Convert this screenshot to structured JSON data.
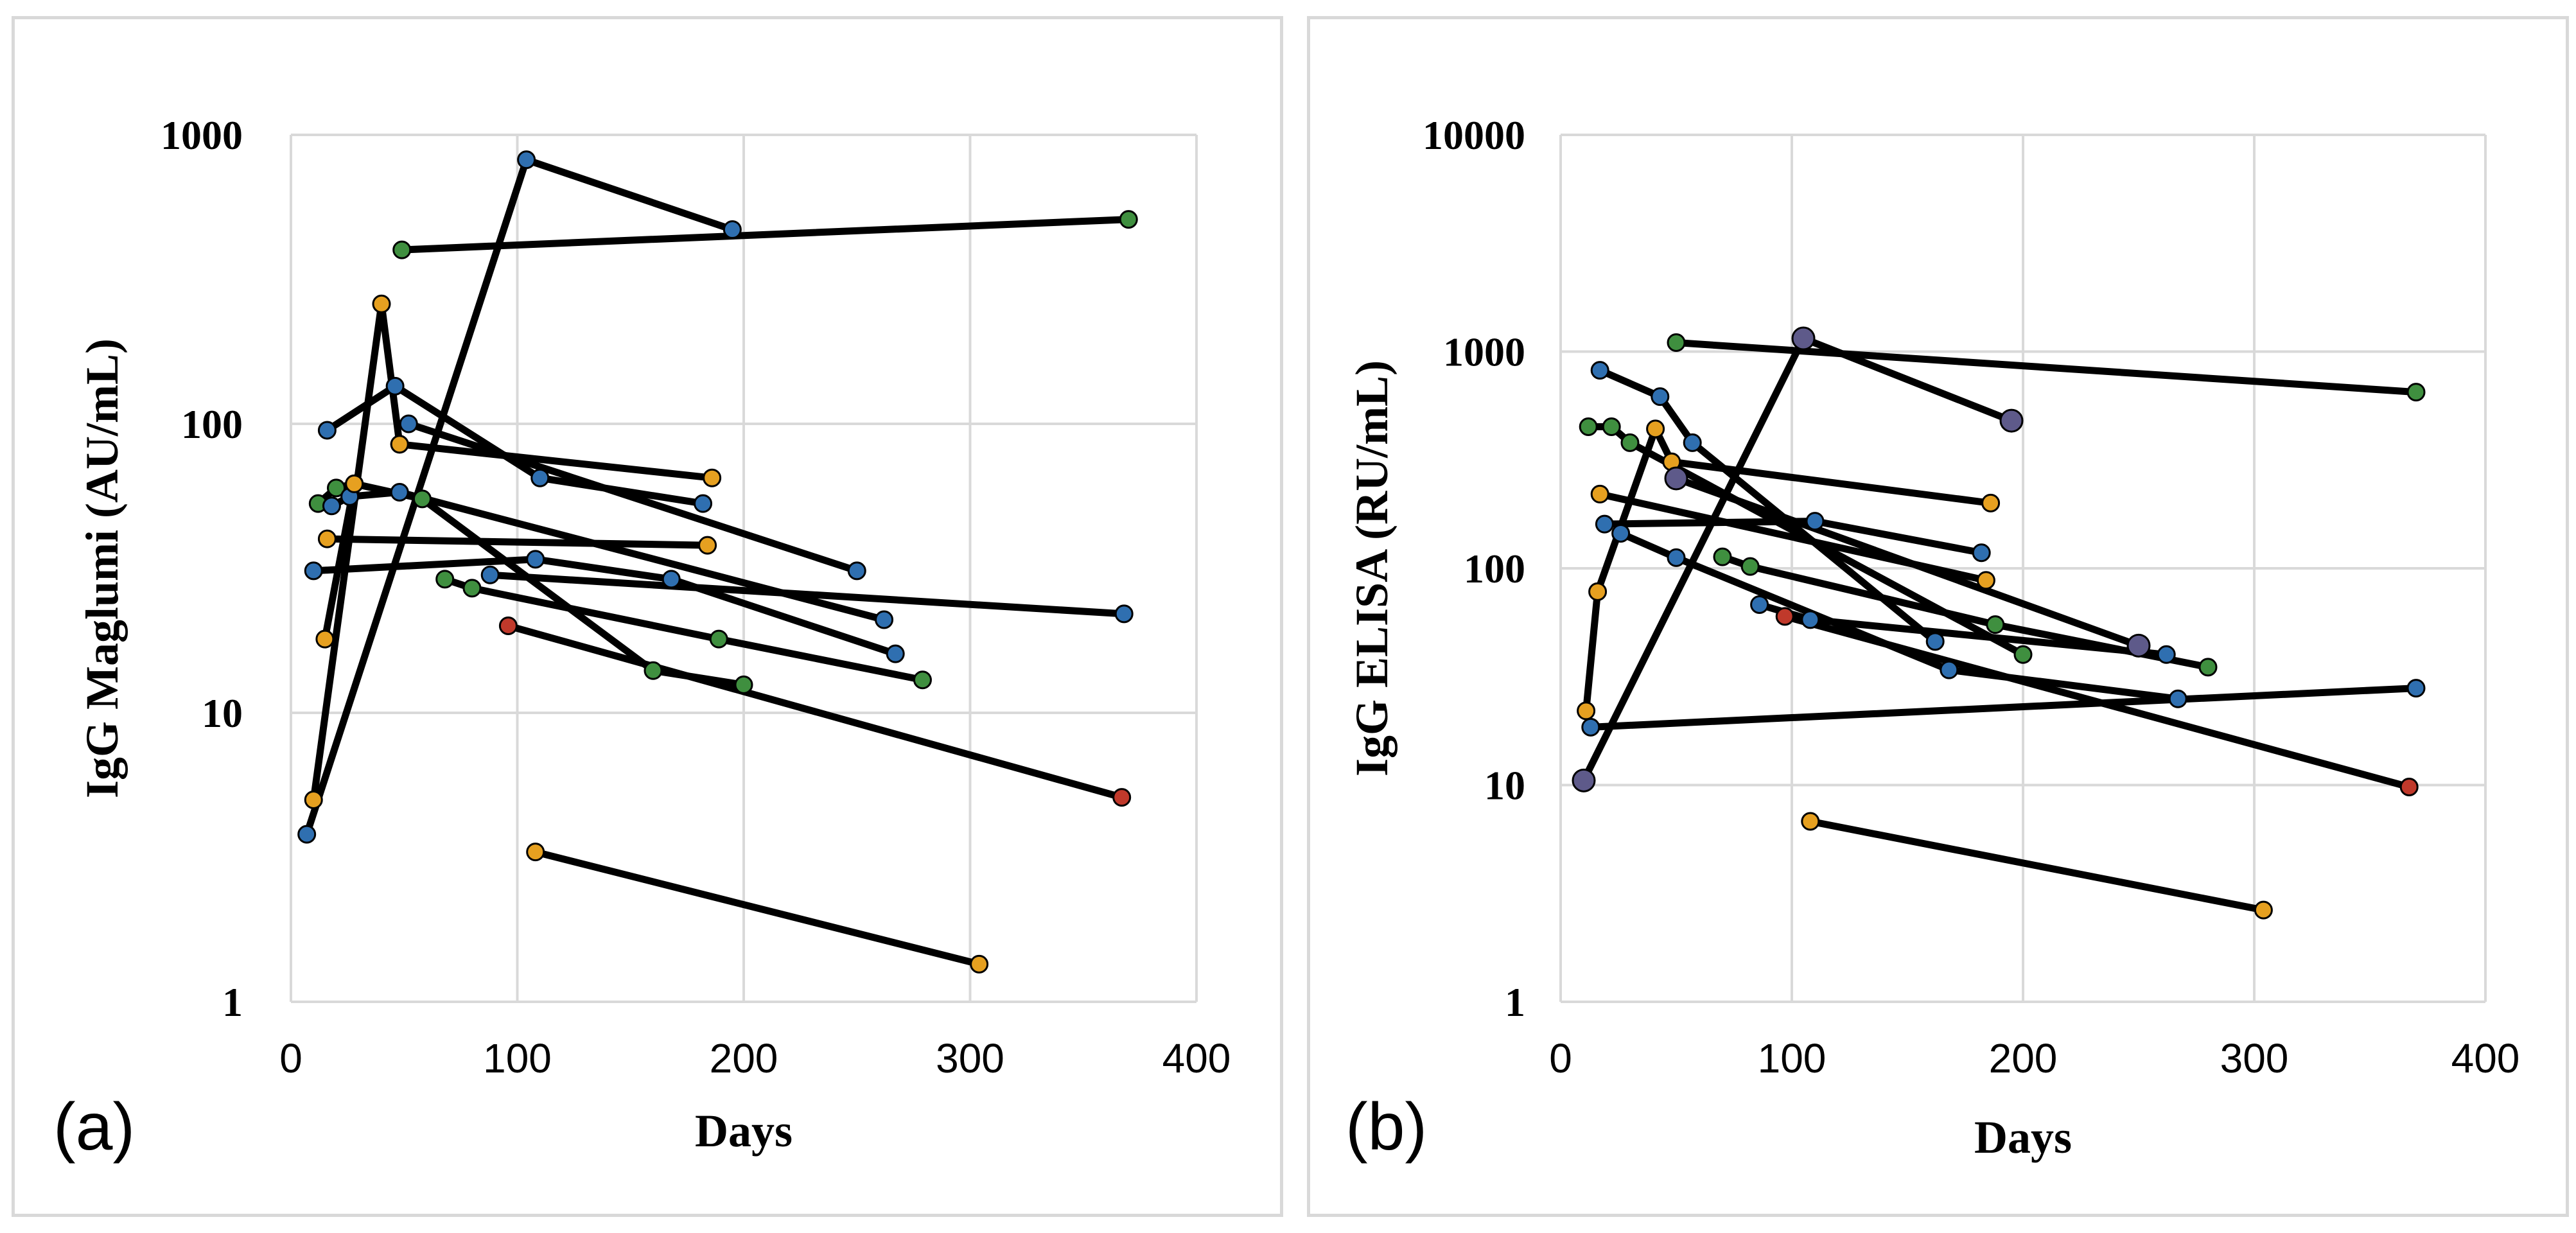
{
  "colors": {
    "blue": "#2f6fb0",
    "green": "#3f8f3f",
    "orange": "#e6a020",
    "red": "#c0392b",
    "purple": "#5e5a8a",
    "line_purple": "#3d3a63"
  },
  "chart_data": [
    {
      "type": "line",
      "panel_label": "(a)",
      "xlabel": "Days",
      "ylabel": "IgG Maglumi (AU/mL)",
      "xlim": [
        0,
        400
      ],
      "ylim": [
        1,
        1000
      ],
      "yscale": "log",
      "grid": true,
      "xticks": [
        "0",
        "100",
        "200",
        "300",
        "400"
      ],
      "yticks": [
        "1",
        "10",
        "100",
        "1000"
      ],
      "ytick_values": [
        1,
        10,
        100,
        1000
      ],
      "xtick_values": [
        0,
        100,
        200,
        300,
        400
      ],
      "series": [
        {
          "color": "blue",
          "x": [
            7,
            104,
            195
          ],
          "y": [
            3.8,
            820,
            470
          ]
        },
        {
          "color": "orange",
          "x": [
            10,
            40,
            48
          ],
          "y": [
            5,
            260,
            85
          ]
        },
        {
          "color": "green",
          "x": [
            49,
            370
          ],
          "y": [
            400,
            510
          ]
        },
        {
          "color": "blue",
          "x": [
            16,
            46,
            110,
            182
          ],
          "y": [
            95,
            135,
            65,
            53
          ]
        },
        {
          "color": "orange",
          "x": [
            48,
            186
          ],
          "y": [
            85,
            65
          ]
        },
        {
          "color": "blue",
          "x": [
            52,
            250
          ],
          "y": [
            100,
            31
          ]
        },
        {
          "color": "green",
          "x": [
            12,
            20,
            28,
            58,
            160,
            200
          ],
          "y": [
            53,
            60,
            62,
            55,
            14,
            12.5
          ]
        },
        {
          "color": "blue",
          "x": [
            18,
            26,
            48,
            262
          ],
          "y": [
            52,
            56,
            58,
            21
          ]
        },
        {
          "color": "orange",
          "x": [
            16,
            184
          ],
          "y": [
            40,
            38
          ]
        },
        {
          "color": "blue",
          "x": [
            10,
            108,
            168,
            267
          ],
          "y": [
            31,
            34,
            29,
            16
          ]
        },
        {
          "color": "green",
          "x": [
            68,
            80,
            189,
            279
          ],
          "y": [
            29,
            27,
            18,
            13
          ]
        },
        {
          "color": "blue",
          "x": [
            88,
            368
          ],
          "y": [
            30,
            22
          ]
        },
        {
          "color": "red",
          "x": [
            96,
            367
          ],
          "y": [
            20,
            5.1
          ]
        },
        {
          "color": "orange",
          "x": [
            15,
            28
          ],
          "y": [
            18,
            62
          ]
        },
        {
          "color": "orange",
          "x": [
            108,
            304
          ],
          "y": [
            3.3,
            1.35
          ]
        }
      ]
    },
    {
      "type": "line",
      "panel_label": "(b)",
      "xlabel": "Days",
      "ylabel": "IgG ELISA (RU/mL)",
      "xlim": [
        0,
        400
      ],
      "ylim": [
        1,
        10000
      ],
      "yscale": "log",
      "grid": true,
      "xticks": [
        "0",
        "100",
        "200",
        "300",
        "400"
      ],
      "yticks": [
        "1",
        "10",
        "100",
        "1000",
        "10000"
      ],
      "ytick_values": [
        1,
        10,
        100,
        1000,
        10000
      ],
      "xtick_values": [
        0,
        100,
        200,
        300,
        400
      ],
      "series": [
        {
          "color": "purple",
          "x": [
            10,
            105,
            195
          ],
          "y": [
            10.5,
            1150,
            480
          ]
        },
        {
          "color": "green",
          "x": [
            50,
            370
          ],
          "y": [
            1100,
            650
          ]
        },
        {
          "color": "blue",
          "x": [
            17,
            43,
            57,
            162
          ],
          "y": [
            820,
            620,
            380,
            46
          ]
        },
        {
          "color": "green",
          "x": [
            12,
            22,
            30,
            200
          ],
          "y": [
            450,
            450,
            380,
            40
          ]
        },
        {
          "color": "orange",
          "x": [
            11,
            16,
            41,
            48,
            186
          ],
          "y": [
            22,
            78,
            440,
            310,
            200
          ]
        },
        {
          "color": "orange",
          "x": [
            17,
            184
          ],
          "y": [
            220,
            88
          ]
        },
        {
          "color": "blue",
          "x": [
            19,
            110,
            182
          ],
          "y": [
            160,
            165,
            118
          ]
        },
        {
          "color": "purple",
          "x": [
            50,
            250
          ],
          "y": [
            260,
            44
          ],
          "line_color": "line_purple"
        },
        {
          "color": "blue",
          "x": [
            26,
            50,
            168,
            267
          ],
          "y": [
            145,
            112,
            34,
            25
          ]
        },
        {
          "color": "green",
          "x": [
            70,
            82,
            188,
            280
          ],
          "y": [
            113,
            102,
            55,
            35
          ]
        },
        {
          "color": "blue",
          "x": [
            86,
            108,
            262
          ],
          "y": [
            68,
            58,
            40
          ]
        },
        {
          "color": "red",
          "x": [
            97,
            367
          ],
          "y": [
            60,
            9.8
          ]
        },
        {
          "color": "blue",
          "x": [
            13,
            370
          ],
          "y": [
            18.5,
            28
          ]
        },
        {
          "color": "orange",
          "x": [
            108,
            304
          ],
          "y": [
            6.8,
            2.65
          ]
        }
      ]
    }
  ]
}
